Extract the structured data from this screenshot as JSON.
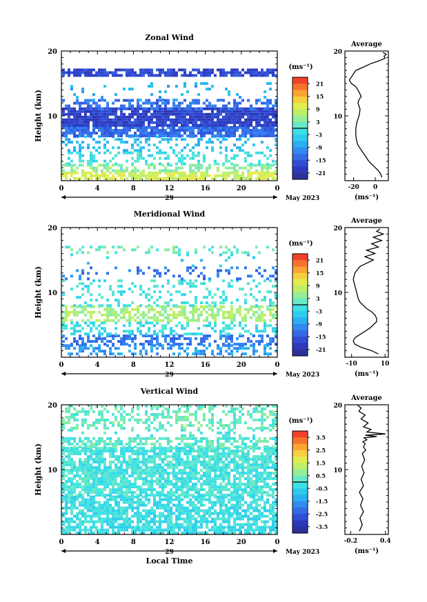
{
  "chart_data": [
    {
      "type": "heatmap",
      "title": "Zonal Wind",
      "ylabel": "Height (km)",
      "ylim": [
        0,
        20
      ],
      "xlim": [
        0,
        24
      ],
      "yticks": [
        "10",
        "20"
      ],
      "xticks": [
        "0",
        "4",
        "8",
        "12",
        "16",
        "20",
        "0"
      ],
      "day_label": "29",
      "date_label": "May 2023",
      "colorbar_unit": "(ms⁻¹)",
      "colorbar_ticks": [
        "21",
        "15",
        "9",
        "3",
        "-3",
        "-9",
        "-15",
        "-21"
      ],
      "colorbar_range": [
        -24,
        24
      ],
      "layers": [
        {
          "y0": 0.5,
          "y1": 1.4,
          "x0": 0,
          "x1": 24,
          "value": 9,
          "fill": 0.8
        },
        {
          "y0": 1.4,
          "y1": 2.6,
          "x0": 0,
          "x1": 24,
          "value": 4,
          "fill": 0.55
        },
        {
          "y0": 2.6,
          "y1": 4.5,
          "x0": 0,
          "x1": 24,
          "value": -1,
          "fill": 0.35
        },
        {
          "y0": 4.5,
          "y1": 7.0,
          "x0": 0,
          "x1": 24,
          "value": -6,
          "fill": 0.3
        },
        {
          "y0": 7.0,
          "y1": 8.4,
          "x0": 0,
          "x1": 24,
          "value": -13,
          "fill": 0.85
        },
        {
          "y0": 8.4,
          "y1": 11.3,
          "x0": 0,
          "x1": 24,
          "value": -18,
          "fill": 0.9
        },
        {
          "y0": 11.3,
          "y1": 12.6,
          "x0": 0,
          "x1": 24,
          "value": -13,
          "fill": 0.45
        },
        {
          "y0": 12.6,
          "y1": 15.2,
          "x0": 0,
          "x1": 24,
          "value": -8,
          "fill": 0.08
        },
        {
          "y0": 16.4,
          "y1": 17.3,
          "x0": 0,
          "x1": 24,
          "value": -17,
          "fill": 0.75
        }
      ],
      "profile": {
        "title": "Average",
        "xlabel": "(ms⁻¹)",
        "xlim": [
          -28,
          12
        ],
        "xticks": [
          "-20",
          "0"
        ],
        "ylim": [
          0,
          20
        ],
        "yticks": [
          "10",
          "20"
        ],
        "x": [
          6,
          5,
          3,
          0,
          -3,
          -6,
          -8,
          -10,
          -12,
          -14,
          -16,
          -17,
          -18,
          -18,
          -17,
          -15,
          -14,
          -16,
          -15,
          -13,
          -16,
          -18,
          -22,
          -24,
          -22,
          -20,
          -18,
          -14,
          -10,
          -5,
          0,
          5,
          9,
          8,
          10,
          7
        ],
        "y": [
          0.5,
          1,
          1.5,
          2,
          2.5,
          3,
          3.5,
          4,
          4.5,
          5,
          5.5,
          6,
          7,
          8,
          9,
          10,
          11,
          12,
          12.5,
          13,
          14,
          14.5,
          15,
          15.5,
          16,
          16.5,
          17,
          17.3,
          17.6,
          18,
          18.3,
          18.6,
          18.9,
          19.2,
          19.5,
          19.8
        ]
      }
    },
    {
      "type": "heatmap",
      "title": "Meridional Wind",
      "ylabel": "Height (km)",
      "ylim": [
        0,
        20
      ],
      "xlim": [
        0,
        24
      ],
      "yticks": [
        "10",
        "20"
      ],
      "xticks": [
        "0",
        "4",
        "8",
        "12",
        "16",
        "20",
        "0"
      ],
      "day_label": "29",
      "date_label": "May 2023",
      "colorbar_unit": "(ms⁻¹)",
      "colorbar_ticks": [
        "21",
        "15",
        "9",
        "3",
        "-3",
        "-9",
        "-15",
        "-21"
      ],
      "colorbar_range": [
        -24,
        24
      ],
      "layers": [
        {
          "y0": 0.3,
          "y1": 2.0,
          "x0": 0,
          "x1": 24,
          "value": -9,
          "fill": 0.45
        },
        {
          "y0": 2.0,
          "y1": 3.5,
          "x0": 0,
          "x1": 24,
          "value": -12,
          "fill": 0.5
        },
        {
          "y0": 3.5,
          "y1": 5.5,
          "x0": 0,
          "x1": 24,
          "value": -2,
          "fill": 0.35
        },
        {
          "y0": 5.5,
          "y1": 8.0,
          "x0": 0,
          "x1": 24,
          "value": 6,
          "fill": 0.55
        },
        {
          "y0": 8.0,
          "y1": 12.0,
          "x0": 0,
          "x1": 24,
          "value": -1,
          "fill": 0.22
        },
        {
          "y0": 12.0,
          "y1": 14.0,
          "x0": 0,
          "x1": 24,
          "value": -12,
          "fill": 0.2
        },
        {
          "y0": 14.0,
          "y1": 16.0,
          "x0": 0,
          "x1": 24,
          "value": -5,
          "fill": 0.04
        },
        {
          "y0": 16.0,
          "y1": 17.2,
          "x0": 0,
          "x1": 24,
          "value": 2,
          "fill": 0.25
        }
      ],
      "profile": {
        "title": "Average",
        "xlabel": "(ms⁻¹)",
        "xlim": [
          -14,
          12
        ],
        "xticks": [
          "-10",
          "10"
        ],
        "ylim": [
          0,
          20
        ],
        "yticks": [
          "10",
          "20"
        ],
        "x": [
          6,
          2,
          -4,
          -8,
          -9,
          -8,
          -5,
          -2,
          1,
          3,
          5,
          5,
          4,
          2,
          -1,
          -3,
          -5,
          -6,
          -7,
          -8,
          -9,
          -8,
          -5,
          -1,
          3,
          -2,
          4,
          -1,
          6,
          2,
          8,
          3,
          9,
          5,
          7
        ],
        "y": [
          0.5,
          1,
          1.5,
          2,
          2.5,
          3,
          3.5,
          4,
          4.5,
          5,
          5.5,
          6,
          6.5,
          7,
          7.5,
          8,
          8.5,
          9,
          10,
          11,
          12,
          13,
          14,
          14.5,
          15,
          15.5,
          16,
          16.5,
          17,
          17.5,
          18,
          18.5,
          19,
          19.4,
          19.8
        ]
      }
    },
    {
      "type": "heatmap",
      "title": "Vertical Wind",
      "xlabel": "Local Time",
      "ylabel": "Height (km)",
      "ylim": [
        0,
        20
      ],
      "xlim": [
        0,
        24
      ],
      "yticks": [
        "10",
        "20"
      ],
      "xticks": [
        "0",
        "4",
        "8",
        "12",
        "16",
        "20",
        "0"
      ],
      "day_label": "29",
      "date_label": "May 2023",
      "colorbar_unit": "(ms⁻¹)",
      "colorbar_ticks": [
        "3.5",
        "2.5",
        "1.5",
        "0.5",
        "-0.5",
        "-1.5",
        "-2.5",
        "-3.5"
      ],
      "colorbar_range": [
        -4,
        4
      ],
      "layers": [
        {
          "y0": 0.3,
          "y1": 6.0,
          "x0": 0,
          "x1": 24,
          "value": -0.3,
          "fill": 0.72
        },
        {
          "y0": 6.0,
          "y1": 13.5,
          "x0": 0,
          "x1": 24,
          "value": -0.1,
          "fill": 0.78
        },
        {
          "y0": 13.5,
          "y1": 15.0,
          "x0": 0,
          "x1": 24,
          "value": 0.2,
          "fill": 0.55
        },
        {
          "y0": 15.0,
          "y1": 16.3,
          "x0": 0,
          "x1": 24,
          "value": 0.0,
          "fill": 0.18
        },
        {
          "y0": 16.3,
          "y1": 20.0,
          "x0": 0,
          "x1": 24,
          "value": 0.3,
          "fill": 0.45
        }
      ],
      "profile": {
        "title": "Average",
        "xlabel": "(ms⁻¹)",
        "xlim": [
          -0.3,
          0.45
        ],
        "xticks": [
          "-0.2",
          "0.4"
        ],
        "ylim": [
          0,
          20
        ],
        "yticks": [
          "10",
          "20"
        ],
        "x": [
          -0.05,
          0.0,
          -0.04,
          0.02,
          -0.03,
          0.01,
          -0.05,
          0.02,
          -0.02,
          0.03,
          -0.01,
          0.04,
          0.0,
          0.06,
          0.02,
          0.05,
          0.01,
          0.08,
          0.03,
          0.25,
          0.05,
          0.4,
          0.08,
          0.15,
          0.02,
          0.1,
          -0.02,
          0.05,
          -0.06,
          -0.02,
          -0.08
        ],
        "y": [
          0.5,
          1.5,
          2.5,
          3.5,
          4.5,
          5.5,
          6.5,
          7.5,
          8.5,
          9.5,
          10.5,
          11.5,
          12.5,
          13,
          13.5,
          14,
          14.3,
          14.6,
          14.9,
          15.1,
          15.3,
          15.5,
          15.8,
          16.2,
          16.6,
          17.2,
          17.8,
          18.4,
          19.0,
          19.5,
          19.9
        ]
      }
    }
  ]
}
